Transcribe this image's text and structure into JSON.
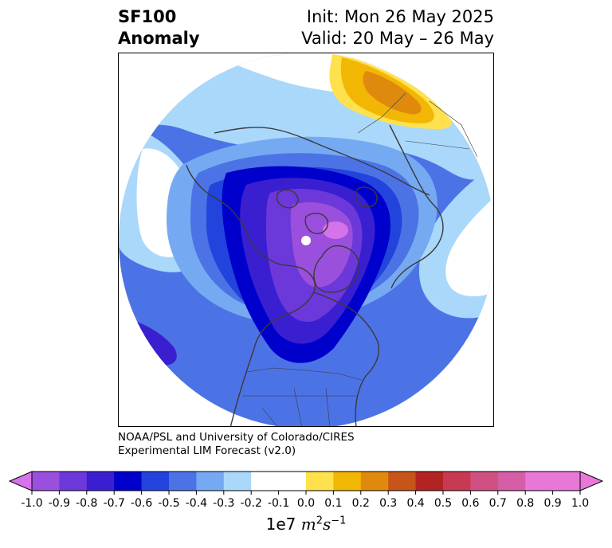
{
  "header": {
    "variable": "SF100",
    "anomaly_label": "Anomaly",
    "init_text": "Init: Mon 26 May 2025",
    "valid_text": "Valid: 20 May – 26 May"
  },
  "credit": {
    "line1": "NOAA/PSL and University of Colorado/CIRES",
    "line2": "Experimental LIM Forecast (v2.0)"
  },
  "colorbar": {
    "scale_prefix": "1e7",
    "units_text": "m",
    "units_exp1": "2",
    "units_s": "s",
    "units_exp2": "−1",
    "extend": "both",
    "ticks": [
      "-1.0",
      "-0.9",
      "-0.8",
      "-0.7",
      "-0.6",
      "-0.5",
      "-0.4",
      "-0.3",
      "-0.2",
      "-0.1",
      "0.0",
      "0.1",
      "0.2",
      "0.3",
      "0.4",
      "0.5",
      "0.6",
      "0.7",
      "0.8",
      "0.9",
      "1.0"
    ],
    "colors": [
      "#9b4fdd",
      "#6c38d9",
      "#3a1fd0",
      "#0000cc",
      "#2244dd",
      "#4c73e6",
      "#75aaf2",
      "#aad8fa",
      "#ffffff",
      "#ffffff",
      "#ffe14d",
      "#f2b705",
      "#df8a0c",
      "#c75418",
      "#b32323",
      "#c73a52",
      "#cf5082",
      "#d65ea6"
    ],
    "under_color": "#d673e8",
    "over_color": "#e878d8"
  },
  "map": {
    "projection": "north-polar-stereographic",
    "field_levels_colors": {
      "neg_0_1": "#aad8fa",
      "neg_0_2": "#75aaf2",
      "neg_0_3": "#4c73e6",
      "neg_0_4": "#2244dd",
      "neg_0_5": "#0000cc",
      "neg_0_6": "#3a1fd0",
      "neg_0_7": "#6c38d9",
      "neg_0_8": "#9b4fdd",
      "neg_0_9": "#d673e8",
      "pos_0_1": "#ffe14d",
      "pos_0_2": "#f2b705",
      "pos_0_3": "#df8a0c"
    },
    "coastline_color": "#3a3a3a"
  }
}
